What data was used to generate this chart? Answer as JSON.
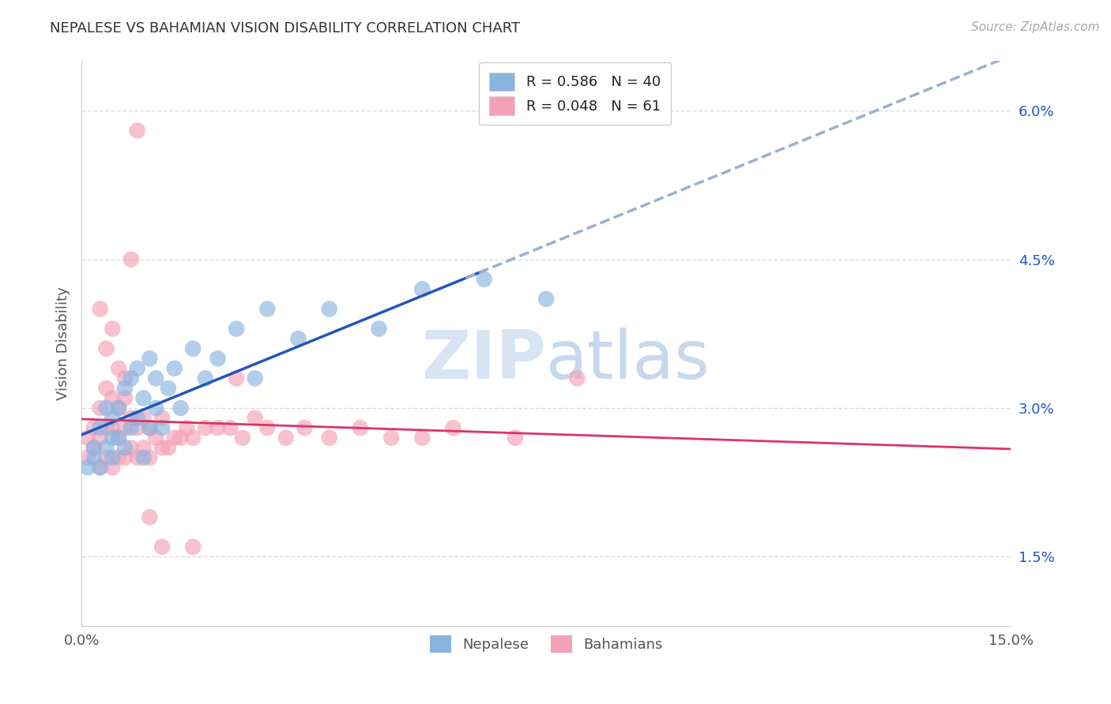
{
  "title": "NEPALESE VS BAHAMIAN VISION DISABILITY CORRELATION CHART",
  "source": "Source: ZipAtlas.com",
  "xlabel_bottom_left": "0.0%",
  "xlabel_bottom_right": "15.0%",
  "ylabel": "Vision Disability",
  "ytick_labels": [
    "1.5%",
    "3.0%",
    "4.5%",
    "6.0%"
  ],
  "ytick_values": [
    0.015,
    0.03,
    0.045,
    0.06
  ],
  "legend1_label": "R = 0.586   N = 40",
  "legend2_label": "R = 0.048   N = 61",
  "legend_sub1": "Nepalese",
  "legend_sub2": "Bahamians",
  "blue_color": "#8ab4e0",
  "pink_color": "#f4a0b8",
  "blue_line_color": "#2255bb",
  "pink_line_color": "#dd3366",
  "gray_dash_color": "#9ab0cc",
  "r_color": "#2255cc",
  "background": "#ffffff",
  "nepalese_x": [
    0.001,
    0.002,
    0.002,
    0.003,
    0.003,
    0.004,
    0.004,
    0.005,
    0.005,
    0.005,
    0.006,
    0.006,
    0.007,
    0.007,
    0.008,
    0.008,
    0.009,
    0.009,
    0.01,
    0.01,
    0.011,
    0.011,
    0.012,
    0.012,
    0.013,
    0.014,
    0.015,
    0.016,
    0.018,
    0.02,
    0.022,
    0.025,
    0.028,
    0.03,
    0.035,
    0.04,
    0.048,
    0.055,
    0.065,
    0.075
  ],
  "nepalese_y": [
    0.024,
    0.026,
    0.025,
    0.028,
    0.024,
    0.03,
    0.026,
    0.025,
    0.027,
    0.029,
    0.03,
    0.027,
    0.032,
    0.026,
    0.028,
    0.033,
    0.029,
    0.034,
    0.025,
    0.031,
    0.028,
    0.035,
    0.03,
    0.033,
    0.028,
    0.032,
    0.034,
    0.03,
    0.036,
    0.033,
    0.035,
    0.038,
    0.033,
    0.04,
    0.037,
    0.04,
    0.038,
    0.042,
    0.043,
    0.041
  ],
  "bahamian_x": [
    0.001,
    0.001,
    0.002,
    0.002,
    0.003,
    0.003,
    0.003,
    0.004,
    0.004,
    0.004,
    0.005,
    0.005,
    0.005,
    0.006,
    0.006,
    0.006,
    0.007,
    0.007,
    0.007,
    0.008,
    0.008,
    0.009,
    0.009,
    0.01,
    0.01,
    0.011,
    0.011,
    0.012,
    0.013,
    0.013,
    0.014,
    0.015,
    0.016,
    0.017,
    0.018,
    0.02,
    0.022,
    0.024,
    0.026,
    0.028,
    0.03,
    0.033,
    0.036,
    0.04,
    0.045,
    0.05,
    0.055,
    0.06,
    0.07,
    0.08,
    0.003,
    0.004,
    0.005,
    0.006,
    0.007,
    0.008,
    0.009,
    0.011,
    0.013,
    0.018,
    0.025
  ],
  "bahamian_y": [
    0.025,
    0.027,
    0.026,
    0.028,
    0.024,
    0.027,
    0.03,
    0.025,
    0.028,
    0.032,
    0.024,
    0.028,
    0.031,
    0.025,
    0.027,
    0.03,
    0.025,
    0.028,
    0.031,
    0.026,
    0.029,
    0.025,
    0.028,
    0.026,
    0.029,
    0.025,
    0.028,
    0.027,
    0.026,
    0.029,
    0.026,
    0.027,
    0.027,
    0.028,
    0.027,
    0.028,
    0.028,
    0.028,
    0.027,
    0.029,
    0.028,
    0.027,
    0.028,
    0.027,
    0.028,
    0.027,
    0.027,
    0.028,
    0.027,
    0.033,
    0.04,
    0.036,
    0.038,
    0.034,
    0.033,
    0.045,
    0.058,
    0.019,
    0.016,
    0.016,
    0.033
  ],
  "xlim": [
    0.0,
    0.15
  ],
  "ylim": [
    0.008,
    0.065
  ],
  "grid_color": "#dddddd",
  "grid_style": "--"
}
